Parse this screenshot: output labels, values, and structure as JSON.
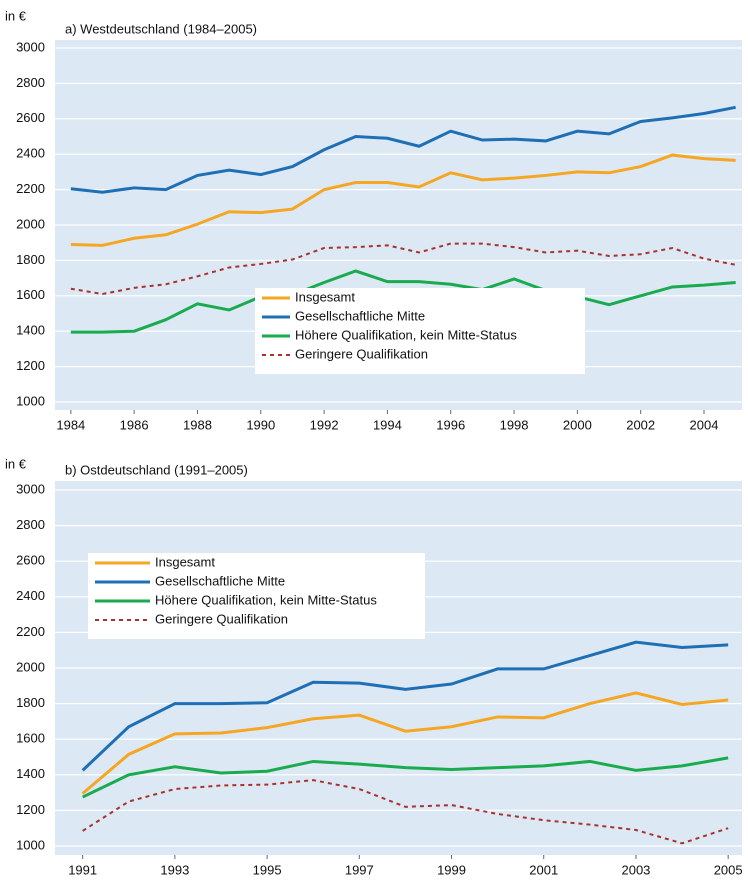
{
  "chart_data": [
    {
      "type": "line",
      "title": "a) Westdeutschland (1984–2005)",
      "y_label": "in €",
      "x": [
        1984,
        1985,
        1986,
        1987,
        1988,
        1989,
        1990,
        1991,
        1992,
        1993,
        1994,
        1995,
        1996,
        1997,
        1998,
        1999,
        2000,
        2001,
        2002,
        2003,
        2004,
        2005
      ],
      "xlim": [
        1983.5,
        2005.2
      ],
      "xticks": [
        1984,
        1986,
        1988,
        1990,
        1992,
        1994,
        1996,
        1998,
        2000,
        2002,
        2004
      ],
      "ylim": [
        1000,
        3000
      ],
      "yticks": [
        1000,
        1200,
        1400,
        1600,
        1800,
        2000,
        2200,
        2400,
        2600,
        2800,
        3000
      ],
      "grid": true,
      "legend_position": "lower center",
      "series": [
        {
          "name": "Insgesamt",
          "color": "#f5a623",
          "style": "solid",
          "values": [
            1890,
            1885,
            1925,
            1945,
            2005,
            2075,
            2070,
            2090,
            2200,
            2240,
            2240,
            2215,
            2295,
            2255,
            2265,
            2280,
            2300,
            2295,
            2330,
            2395,
            2375,
            2365
          ]
        },
        {
          "name": "Gesellschaftliche Mitte",
          "color": "#1f6fb5",
          "style": "solid",
          "values": [
            2205,
            2185,
            2210,
            2200,
            2280,
            2310,
            2285,
            2330,
            2425,
            2500,
            2490,
            2445,
            2530,
            2480,
            2485,
            2475,
            2530,
            2515,
            2585,
            2605,
            2630,
            2665
          ]
        },
        {
          "name": "Höhere Qualifikation, kein Mitte-Status",
          "color": "#1aab4e",
          "style": "solid",
          "values": [
            1395,
            1395,
            1400,
            1465,
            1555,
            1520,
            1595,
            1605,
            1675,
            1740,
            1680,
            1680,
            1665,
            1635,
            1695,
            1630,
            1595,
            1550,
            1600,
            1650,
            1660,
            1675
          ]
        },
        {
          "name": "Geringere Qualifikation",
          "color": "#a8322d",
          "style": "dotted",
          "values": [
            1640,
            1610,
            1645,
            1665,
            1710,
            1760,
            1780,
            1805,
            1870,
            1875,
            1885,
            1845,
            1895,
            1895,
            1875,
            1845,
            1855,
            1825,
            1835,
            1870,
            1810,
            1775
          ]
        }
      ]
    },
    {
      "type": "line",
      "title": "b) Ostdeutschland (1991–2005)",
      "y_label": "in €",
      "x": [
        1991,
        1992,
        1993,
        1994,
        1995,
        1996,
        1997,
        1998,
        1999,
        2000,
        2001,
        2002,
        2003,
        2004,
        2005
      ],
      "xlim": [
        1990.4,
        2005.3
      ],
      "xticks": [
        1991,
        1993,
        1995,
        1997,
        1999,
        2001,
        2003,
        2005
      ],
      "ylim": [
        1000,
        3000
      ],
      "yticks": [
        1000,
        1200,
        1400,
        1600,
        1800,
        2000,
        2200,
        2400,
        2600,
        2800,
        3000
      ],
      "grid": true,
      "legend_position": "upper left",
      "series": [
        {
          "name": "Insgesamt",
          "color": "#f5a623",
          "style": "solid",
          "values": [
            1295,
            1515,
            1630,
            1635,
            1665,
            1715,
            1735,
            1645,
            1670,
            1725,
            1720,
            1800,
            1860,
            1795,
            1820
          ]
        },
        {
          "name": "Gesellschaftliche Mitte",
          "color": "#1f6fb5",
          "style": "solid",
          "values": [
            1425,
            1670,
            1800,
            1800,
            1805,
            1920,
            1915,
            1880,
            1910,
            1995,
            1995,
            2070,
            2145,
            2115,
            2130
          ]
        },
        {
          "name": "Höhere Qualifikation, kein Mitte-Status",
          "color": "#1aab4e",
          "style": "solid",
          "values": [
            1275,
            1400,
            1445,
            1410,
            1420,
            1475,
            1460,
            1440,
            1430,
            1440,
            1450,
            1475,
            1425,
            1450,
            1495
          ]
        },
        {
          "name": "Geringere Qualifikation",
          "color": "#a8322d",
          "style": "dotted",
          "values": [
            1085,
            1250,
            1320,
            1340,
            1345,
            1370,
            1320,
            1220,
            1230,
            1180,
            1145,
            1120,
            1090,
            1015,
            1100
          ]
        }
      ]
    }
  ]
}
